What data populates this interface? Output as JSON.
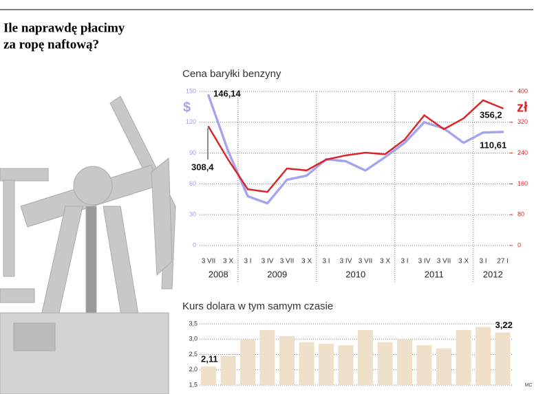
{
  "title": "Ile naprawdę płacimy za ropę naftową?",
  "source": "MC",
  "chart_data": [
    {
      "type": "line",
      "title": "Cena baryłki benzyny",
      "y_unit": "$",
      "y2_unit": "zł",
      "categories": [
        "3 VII",
        "3 X",
        "3 I",
        "3 IV",
        "3 VII",
        "3 X",
        "3 I",
        "3 IV",
        "3 VII",
        "3 X",
        "3 I",
        "3 IV",
        "3 VII",
        "3 X",
        "3 I",
        "27 I"
      ],
      "year_labels": [
        "2008",
        "2009",
        "2010",
        "2011",
        "2012"
      ],
      "ylim": [
        0,
        150
      ],
      "yticks": [
        0,
        30,
        60,
        90,
        120,
        150
      ],
      "y2lim": [
        0,
        400
      ],
      "y2ticks": [
        0,
        80,
        160,
        240,
        320,
        400
      ],
      "grid": true,
      "series": [
        {
          "name": "$",
          "color": "#a3a3f0",
          "axis": "y",
          "values": [
            146.14,
            92,
            48,
            41,
            64,
            68,
            84,
            82,
            73,
            86,
            100,
            120,
            114,
            100,
            110,
            110.61
          ],
          "value_labels": [
            "146,14",
            null,
            null,
            null,
            null,
            null,
            null,
            null,
            null,
            null,
            null,
            null,
            null,
            null,
            null,
            "110,61"
          ]
        },
        {
          "name": "zł",
          "color": "#d9262b",
          "axis": "y2",
          "values": [
            308.4,
            223,
            146,
            139,
            200,
            195,
            223,
            234,
            241,
            237,
            275,
            338,
            302,
            330,
            377,
            356.2
          ],
          "value_labels": [
            "308,4",
            null,
            null,
            null,
            null,
            null,
            null,
            null,
            null,
            null,
            null,
            null,
            null,
            null,
            null,
            "356,2"
          ]
        }
      ]
    },
    {
      "type": "bar",
      "title": "Kurs dolara w tym samym czasie",
      "color": "#efe1c9",
      "values": [
        2.11,
        2.45,
        3.0,
        3.3,
        3.1,
        2.9,
        2.85,
        2.8,
        3.3,
        2.9,
        3.0,
        2.8,
        2.7,
        3.3,
        3.4,
        3.22
      ],
      "value_labels": [
        "2,11",
        null,
        null,
        null,
        null,
        null,
        null,
        null,
        null,
        null,
        null,
        null,
        null,
        null,
        null,
        "3,22"
      ],
      "ylim": [
        1.5,
        3.5
      ],
      "yticks": [
        {
          "value": 1.5,
          "label": "1,5"
        },
        {
          "value": 2.0,
          "label": "2,0"
        },
        {
          "value": 2.5,
          "label": "2,5"
        },
        {
          "value": 3.0,
          "label": "3,0"
        },
        {
          "value": 3.5,
          "label": "3,5"
        }
      ],
      "grid": true
    }
  ]
}
